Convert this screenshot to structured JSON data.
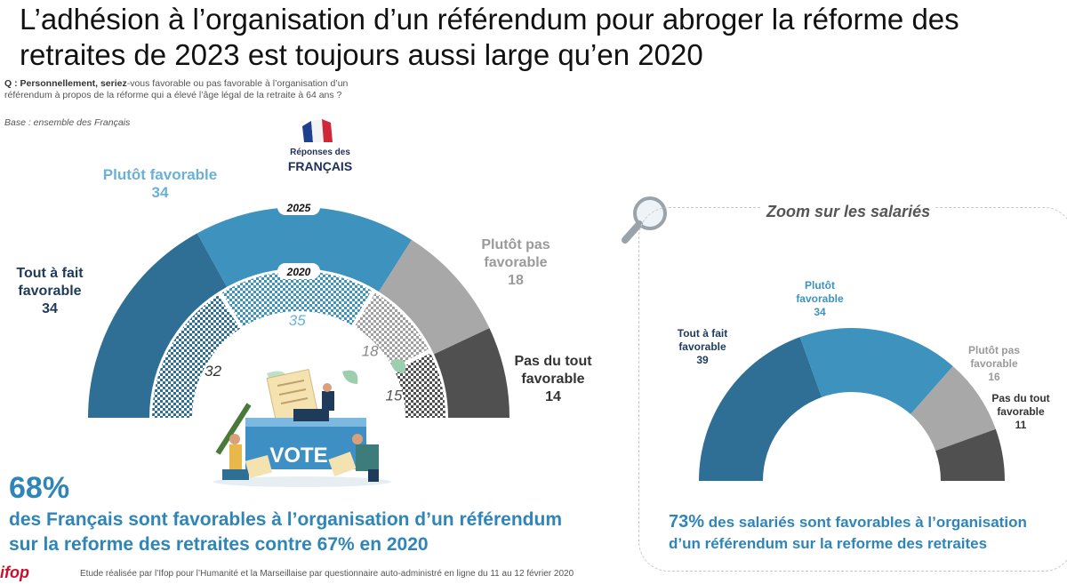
{
  "title": "L’adhésion à l’organisation d’un référendum pour abroger la réforme des retraites de 2023 est toujours aussi large qu’en 2020",
  "question_prefix": "Q : Personnellement, seriez",
  "question_rest": "-vous favorable ou pas favorable à l’organisation d’un référendum à propos de la réforme qui a élevé l’âge légal de la retraite à 64 ans ?",
  "base": "Base : ensemble des Français",
  "responses_header": {
    "line1": "Réponses des",
    "line2": "FRANÇAIS"
  },
  "footer": "Etude réalisée par l’Ifop pour l’Humanité et la Marseillaise par questionnaire auto-administré en ligne du 11 au 12 février 2020",
  "logo_text": "ifop",
  "vote_label": "VOTE",
  "colors": {
    "tout_a_fait": "#2f6f96",
    "plutot_fav": "#3d93be",
    "plutot_pas": "#a8a8a8",
    "pas_du_tout": "#505050",
    "accent": "#2f85b8"
  },
  "summary": {
    "pct": "68%",
    "text1": "des Français sont favorables à l’organisation d’un référendum",
    "text2": "sur la reforme des retraites contre 67% en 2020"
  },
  "zoom": {
    "title": "Zoom sur les salariés",
    "pct": "73%",
    "text1": " des salariés sont favorables à l’organisation",
    "text2": "d’un référendum sur la reforme des retraites"
  },
  "chart_data": [
    {
      "type": "pie",
      "title": "Réponses des FRANÇAIS",
      "categories": [
        "Tout à fait favorable",
        "Plutôt favorable",
        "Plutôt pas favorable",
        "Pas du tout favorable"
      ],
      "series": [
        {
          "name": "2025",
          "values": [
            34,
            34,
            18,
            14
          ]
        },
        {
          "name": "2020",
          "values": [
            32,
            35,
            18,
            15
          ]
        }
      ],
      "labels_2025": [
        {
          "l1": "Tout à fait",
          "l2": "favorable",
          "v": "34"
        },
        {
          "l1": "Plutôt favorable",
          "l2": "",
          "v": "34"
        },
        {
          "l1": "Plutôt pas",
          "l2": "favorable",
          "v": "18"
        },
        {
          "l1": "Pas du tout",
          "l2": "favorable",
          "v": "14"
        }
      ],
      "labels_2020": [
        "32",
        "35",
        "18",
        "15"
      ],
      "year_labels": [
        "2025",
        "2020"
      ]
    },
    {
      "type": "pie",
      "title": "Zoom sur les salariés",
      "categories": [
        "Tout à fait favorable",
        "Plutôt favorable",
        "Plutôt pas favorable",
        "Pas du tout favorable"
      ],
      "values": [
        39,
        34,
        16,
        11
      ],
      "labels": [
        {
          "l1": "Tout à fait",
          "l2": "favorable",
          "v": "39"
        },
        {
          "l1": "Plutôt",
          "l2": "favorable",
          "v": "34"
        },
        {
          "l1": "Plutôt pas",
          "l2": "favorable",
          "v": "16"
        },
        {
          "l1": "Pas du tout",
          "l2": "favorable",
          "v": "11"
        }
      ]
    }
  ]
}
